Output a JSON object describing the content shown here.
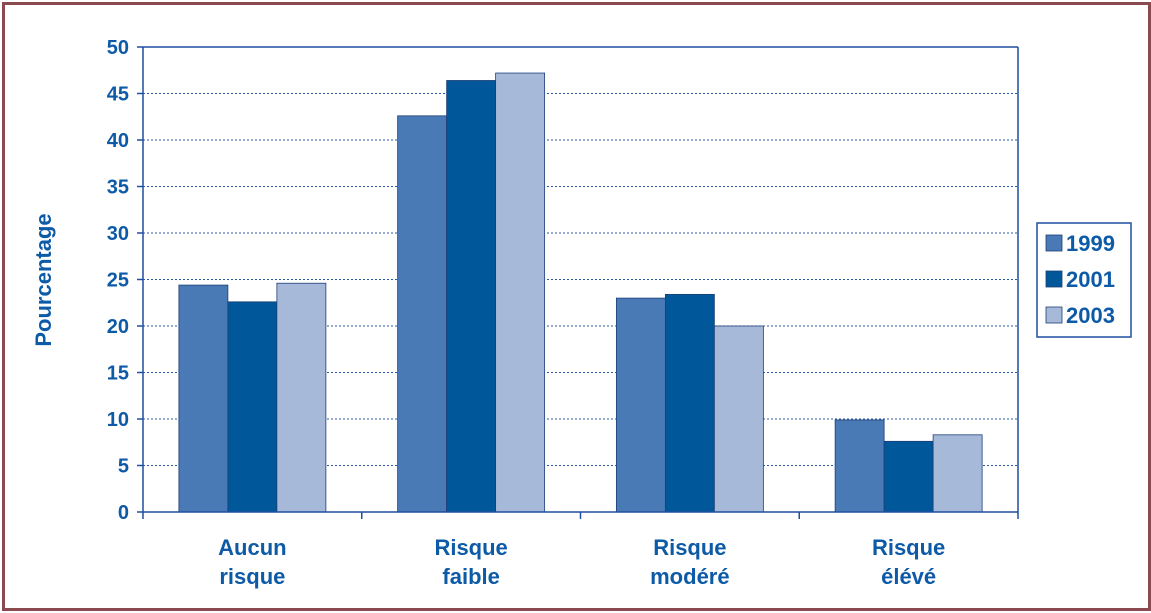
{
  "colors": {
    "series": [
      "#4a7ab5",
      "#00579a",
      "#a7b9d9"
    ],
    "text": "#0d5aa7",
    "axis": "#1f4fa0",
    "grid": "#2a5aa6",
    "frame": "#8b4a4f"
  },
  "chart_data": {
    "type": "bar",
    "ylabel": "Pourcentage",
    "ylim": [
      0,
      50
    ],
    "yticks": [
      0,
      5,
      10,
      15,
      20,
      25,
      30,
      35,
      40,
      45,
      50
    ],
    "grid": true,
    "legend_position": "right",
    "categories": [
      [
        "Aucun",
        "risque"
      ],
      [
        "Risque",
        "faible"
      ],
      [
        "Risque",
        "modéré"
      ],
      [
        "Risque",
        "élévé"
      ]
    ],
    "series": [
      {
        "name": "1999",
        "values": [
          24.4,
          42.6,
          23.0,
          9.9
        ]
      },
      {
        "name": "2001",
        "values": [
          22.6,
          46.4,
          23.4,
          7.6
        ]
      },
      {
        "name": "2003",
        "values": [
          24.6,
          47.2,
          20.0,
          8.3
        ]
      }
    ]
  }
}
